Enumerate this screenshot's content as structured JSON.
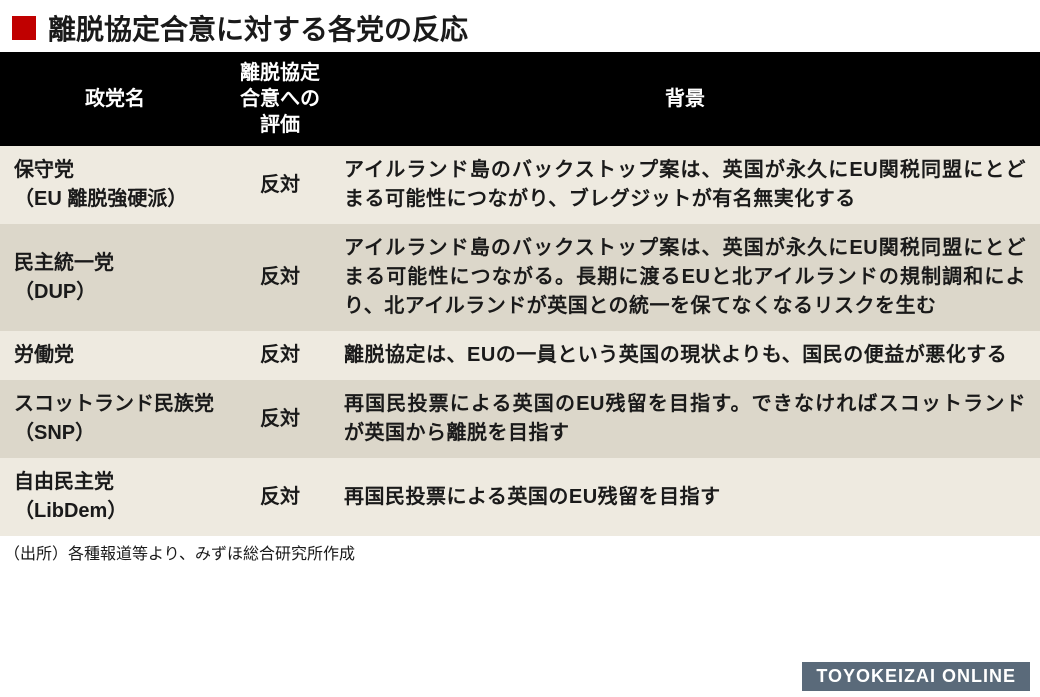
{
  "title": "離脱協定合意に対する各党の反応",
  "title_marker_color": "#c00000",
  "header_bg": "#000000",
  "header_fg": "#ffffff",
  "band_a_bg": "#eeeae0",
  "band_b_bg": "#dcd7ca",
  "text_color": "#1a1a1a",
  "font_size_title": 28,
  "font_size_body": 20,
  "columns": {
    "party": "政党名",
    "eval": "離脱協定\n合意への\n評価",
    "bg": "背景"
  },
  "rows": [
    {
      "party": "保守党\n（EU 離脱強硬派）",
      "eval": "反対",
      "bg": "アイルランド島のバックストップ案は、英国が永久にEU関税同盟にとどまる可能性につながり、ブレグジットが有名無実化する"
    },
    {
      "party": "民主統一党\n（DUP）",
      "eval": "反対",
      "bg": "アイルランド島のバックストップ案は、英国が永久にEU関税同盟にとどまる可能性につながる。長期に渡るEUと北アイルランドの規制調和により、北アイルランドが英国との統一を保てなくなるリスクを生む"
    },
    {
      "party": "労働党",
      "eval": "反対",
      "bg": "離脱協定は、EUの一員という英国の現状よりも、国民の便益が悪化する"
    },
    {
      "party": "スコットランド民族党\n（SNP）",
      "eval": "反対",
      "bg": "再国民投票による英国のEU残留を目指す。できなければスコットランドが英国から離脱を目指す"
    },
    {
      "party": "自由民主党\n（LibDem）",
      "eval": "反対",
      "bg": "再国民投票による英国のEU残留を目指す"
    }
  ],
  "source": "（出所）各種報道等より、みずほ総合研究所作成",
  "brand": "TOYOKEIZAI  ONLINE",
  "brand_bg": "#5a6a7a",
  "brand_fg": "#ffffff"
}
